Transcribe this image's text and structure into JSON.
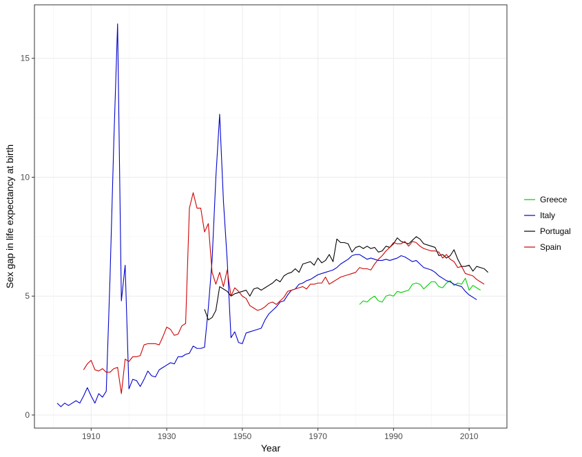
{
  "chart_data": {
    "type": "line",
    "xlabel": "Year",
    "ylabel": "Sex gap in life expectancy at birth",
    "xlim": [
      1895,
      2020
    ],
    "ylim": [
      -0.55,
      17.25
    ],
    "x_ticks": [
      1910,
      1930,
      1950,
      1970,
      1990,
      2010
    ],
    "y_ticks": [
      0,
      5,
      10,
      15
    ],
    "grid": true,
    "legend_position": "right",
    "series": [
      {
        "name": "Greece",
        "color": "#00cc00",
        "x": [
          1981,
          1982,
          1983,
          1984,
          1985,
          1986,
          1987,
          1988,
          1989,
          1990,
          1991,
          1992,
          1993,
          1994,
          1995,
          1996,
          1997,
          1998,
          1999,
          2000,
          2001,
          2002,
          2003,
          2004,
          2005,
          2006,
          2007,
          2008,
          2009,
          2010,
          2011,
          2012,
          2013
        ],
        "y": [
          4.65,
          4.8,
          4.75,
          4.9,
          5.0,
          4.8,
          4.75,
          5.0,
          5.05,
          5.0,
          5.2,
          5.15,
          5.2,
          5.25,
          5.5,
          5.55,
          5.5,
          5.3,
          5.45,
          5.6,
          5.6,
          5.4,
          5.35,
          5.55,
          5.65,
          5.45,
          5.55,
          5.5,
          5.75,
          5.25,
          5.45,
          5.35,
          5.25
        ]
      },
      {
        "name": "Italy",
        "color": "#0000cc",
        "x": [
          1901,
          1902,
          1903,
          1904,
          1905,
          1906,
          1907,
          1908,
          1909,
          1910,
          1911,
          1912,
          1913,
          1914,
          1915,
          1916,
          1917,
          1918,
          1919,
          1920,
          1921,
          1922,
          1923,
          1924,
          1925,
          1926,
          1927,
          1928,
          1929,
          1930,
          1931,
          1932,
          1933,
          1934,
          1935,
          1936,
          1937,
          1938,
          1939,
          1940,
          1941,
          1942,
          1943,
          1944,
          1945,
          1946,
          1947,
          1948,
          1949,
          1950,
          1951,
          1952,
          1953,
          1954,
          1955,
          1956,
          1957,
          1958,
          1959,
          1960,
          1961,
          1962,
          1963,
          1964,
          1965,
          1966,
          1967,
          1968,
          1969,
          1970,
          1971,
          1972,
          1973,
          1974,
          1975,
          1976,
          1977,
          1978,
          1979,
          1980,
          1981,
          1982,
          1983,
          1984,
          1985,
          1986,
          1987,
          1988,
          1989,
          1990,
          1991,
          1992,
          1993,
          1994,
          1995,
          1996,
          1997,
          1998,
          1999,
          2000,
          2001,
          2002,
          2003,
          2004,
          2005,
          2006,
          2007,
          2008,
          2009,
          2010,
          2011,
          2012
        ],
        "y": [
          0.5,
          0.35,
          0.5,
          0.4,
          0.5,
          0.6,
          0.5,
          0.8,
          1.15,
          0.8,
          0.5,
          0.9,
          0.75,
          1.0,
          5.8,
          11.5,
          16.45,
          4.8,
          6.3,
          1.1,
          1.5,
          1.45,
          1.2,
          1.5,
          1.85,
          1.65,
          1.6,
          1.9,
          2.0,
          2.1,
          2.2,
          2.15,
          2.45,
          2.45,
          2.55,
          2.6,
          2.9,
          2.8,
          2.8,
          2.85,
          4.5,
          6.5,
          10.0,
          12.65,
          9.0,
          6.5,
          3.25,
          3.5,
          3.05,
          3.0,
          3.45,
          3.5,
          3.55,
          3.6,
          3.65,
          4.0,
          4.25,
          4.4,
          4.55,
          4.75,
          4.8,
          5.05,
          5.25,
          5.3,
          5.5,
          5.55,
          5.65,
          5.7,
          5.8,
          5.9,
          5.95,
          6.0,
          6.05,
          6.1,
          6.2,
          6.35,
          6.45,
          6.55,
          6.7,
          6.75,
          6.75,
          6.65,
          6.55,
          6.6,
          6.55,
          6.5,
          6.5,
          6.55,
          6.5,
          6.55,
          6.6,
          6.7,
          6.65,
          6.55,
          6.45,
          6.5,
          6.35,
          6.2,
          6.15,
          6.1,
          6.0,
          5.85,
          5.75,
          5.65,
          5.6,
          5.5,
          5.45,
          5.4,
          5.2,
          5.05,
          4.95,
          4.85
        ]
      },
      {
        "name": "Portugal",
        "color": "#000000",
        "x": [
          1940,
          1941,
          1942,
          1943,
          1944,
          1945,
          1946,
          1947,
          1948,
          1949,
          1950,
          1951,
          1952,
          1953,
          1954,
          1955,
          1956,
          1957,
          1958,
          1959,
          1960,
          1961,
          1962,
          1963,
          1964,
          1965,
          1966,
          1967,
          1968,
          1969,
          1970,
          1971,
          1972,
          1973,
          1974,
          1975,
          1976,
          1977,
          1978,
          1979,
          1980,
          1981,
          1982,
          1983,
          1984,
          1985,
          1986,
          1987,
          1988,
          1989,
          1990,
          1991,
          1992,
          1993,
          1994,
          1995,
          1996,
          1997,
          1998,
          1999,
          2000,
          2001,
          2002,
          2003,
          2004,
          2005,
          2006,
          2007,
          2008,
          2009,
          2010,
          2011,
          2012,
          2013,
          2014,
          2015
        ],
        "y": [
          4.45,
          4.0,
          4.1,
          4.4,
          5.4,
          5.3,
          5.2,
          5.0,
          5.1,
          5.15,
          5.2,
          5.25,
          5.0,
          5.3,
          5.35,
          5.25,
          5.35,
          5.45,
          5.55,
          5.7,
          5.6,
          5.85,
          5.95,
          6.0,
          6.15,
          6.0,
          6.35,
          6.4,
          6.45,
          6.3,
          6.6,
          6.4,
          6.5,
          6.75,
          6.45,
          7.4,
          7.25,
          7.25,
          7.2,
          6.85,
          7.05,
          7.1,
          7.0,
          7.1,
          7.0,
          7.05,
          6.85,
          6.9,
          7.1,
          7.05,
          7.2,
          7.45,
          7.3,
          7.25,
          7.2,
          7.35,
          7.5,
          7.4,
          7.2,
          7.15,
          7.1,
          7.05,
          6.7,
          6.75,
          6.6,
          6.7,
          6.95,
          6.55,
          6.25,
          6.25,
          6.3,
          6.05,
          6.25,
          6.2,
          6.15,
          6.0
        ]
      },
      {
        "name": "Spain",
        "color": "#cc0000",
        "x": [
          1908,
          1909,
          1910,
          1911,
          1912,
          1913,
          1914,
          1915,
          1916,
          1917,
          1918,
          1919,
          1920,
          1921,
          1922,
          1923,
          1924,
          1925,
          1926,
          1927,
          1928,
          1929,
          1930,
          1931,
          1932,
          1933,
          1934,
          1935,
          1936,
          1937,
          1938,
          1939,
          1940,
          1941,
          1942,
          1943,
          1944,
          1945,
          1946,
          1947,
          1948,
          1949,
          1950,
          1951,
          1952,
          1953,
          1954,
          1955,
          1956,
          1957,
          1958,
          1959,
          1960,
          1961,
          1962,
          1963,
          1964,
          1965,
          1966,
          1967,
          1968,
          1969,
          1970,
          1971,
          1972,
          1973,
          1974,
          1975,
          1976,
          1977,
          1978,
          1979,
          1980,
          1981,
          1982,
          1983,
          1984,
          1985,
          1986,
          1987,
          1988,
          1989,
          1990,
          1991,
          1992,
          1993,
          1994,
          1995,
          1996,
          1997,
          1998,
          1999,
          2000,
          2001,
          2002,
          2003,
          2004,
          2005,
          2006,
          2007,
          2008,
          2009,
          2010,
          2011,
          2012,
          2013,
          2014
        ],
        "y": [
          1.9,
          2.15,
          2.3,
          1.9,
          1.85,
          1.95,
          1.8,
          1.8,
          1.95,
          2.0,
          0.9,
          2.35,
          2.25,
          2.45,
          2.45,
          2.5,
          2.95,
          3.0,
          3.0,
          3.0,
          2.95,
          3.3,
          3.7,
          3.6,
          3.35,
          3.4,
          3.75,
          3.85,
          8.7,
          9.35,
          8.7,
          8.7,
          7.7,
          8.05,
          6.0,
          5.5,
          6.0,
          5.4,
          6.1,
          5.0,
          5.35,
          5.2,
          5.0,
          4.9,
          4.6,
          4.5,
          4.4,
          4.45,
          4.55,
          4.7,
          4.75,
          4.65,
          4.8,
          4.95,
          5.2,
          5.25,
          5.3,
          5.35,
          5.4,
          5.3,
          5.5,
          5.5,
          5.55,
          5.55,
          5.8,
          5.5,
          5.6,
          5.7,
          5.8,
          5.85,
          5.9,
          5.95,
          6.0,
          6.2,
          6.15,
          6.15,
          6.1,
          6.35,
          6.55,
          6.7,
          6.9,
          7.05,
          7.25,
          7.2,
          7.2,
          7.3,
          7.1,
          7.3,
          7.25,
          7.1,
          7.0,
          6.95,
          6.9,
          6.9,
          6.85,
          6.6,
          6.75,
          6.55,
          6.45,
          6.2,
          6.25,
          5.95,
          5.9,
          5.85,
          5.7,
          5.6,
          5.5
        ]
      }
    ]
  }
}
